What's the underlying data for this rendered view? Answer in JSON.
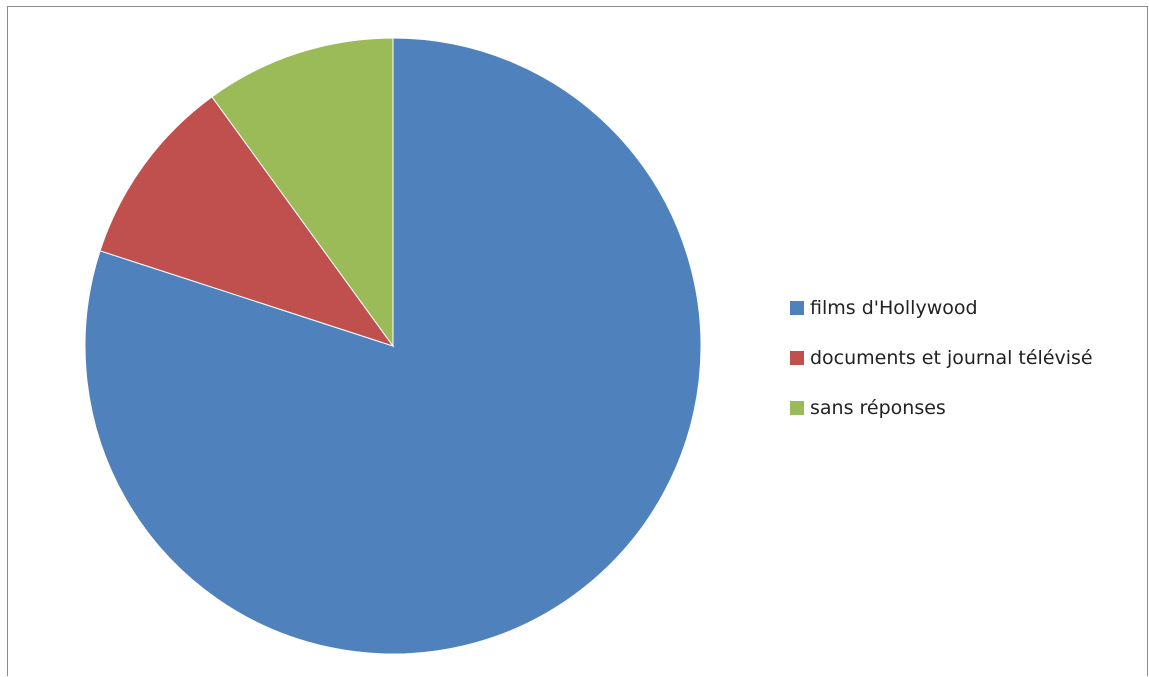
{
  "chart_data": {
    "type": "pie",
    "title": "",
    "slices": [
      {
        "label": "films d'Hollywood",
        "value": 80,
        "color": "#4F81BD"
      },
      {
        "label": "documents et journal télévisé",
        "value": 10,
        "color": "#C0504D"
      },
      {
        "label": "sans réponses",
        "value": 10,
        "color": "#9BBB59"
      }
    ],
    "start_angle_deg": 0,
    "direction": "clockwise",
    "legend_position": "right"
  }
}
